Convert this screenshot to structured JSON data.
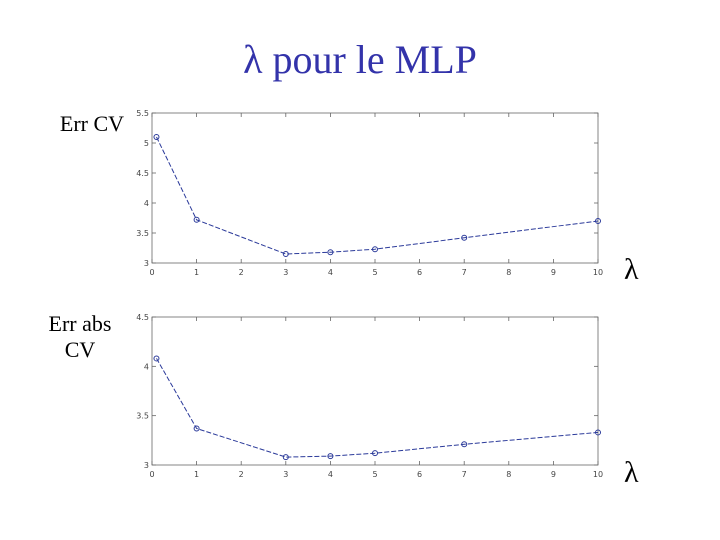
{
  "page": {
    "title": "λ pour le MLP",
    "colors": {
      "title": "#3333aa",
      "series": "#2b3a9a"
    }
  },
  "chart_data": [
    {
      "type": "line",
      "ylabel": "Err CV",
      "xlabel": "λ",
      "x": [
        0.1,
        1,
        3,
        4,
        5,
        7,
        10
      ],
      "series": [
        {
          "values": [
            5.1,
            3.72,
            3.15,
            3.18,
            3.23,
            3.42,
            3.7
          ]
        }
      ],
      "xlim": [
        0,
        10
      ],
      "ylim": [
        3,
        5.5
      ],
      "xticks": [
        "0",
        "1",
        "2",
        "3",
        "4",
        "5",
        "6",
        "7",
        "8",
        "9",
        "10"
      ],
      "yticks": [
        "3",
        "3.5",
        "4",
        "4.5",
        "5",
        "5.5"
      ],
      "ytick_values": [
        3,
        3.5,
        4,
        4.5,
        5,
        5.5
      ],
      "grid": false
    },
    {
      "type": "line",
      "ylabel": "Err abs CV",
      "xlabel": "λ",
      "x": [
        0.1,
        1,
        3,
        4,
        5,
        7,
        10
      ],
      "series": [
        {
          "values": [
            4.08,
            3.37,
            3.08,
            3.09,
            3.12,
            3.21,
            3.33
          ]
        }
      ],
      "xlim": [
        0,
        10
      ],
      "ylim": [
        3,
        4.5
      ],
      "xticks": [
        "0",
        "1",
        "2",
        "3",
        "4",
        "5",
        "6",
        "7",
        "8",
        "9",
        "10"
      ],
      "yticks": [
        "3",
        "3.5",
        "4",
        "4.5"
      ],
      "ytick_values": [
        3,
        3.5,
        4,
        4.5
      ],
      "grid": false
    }
  ]
}
